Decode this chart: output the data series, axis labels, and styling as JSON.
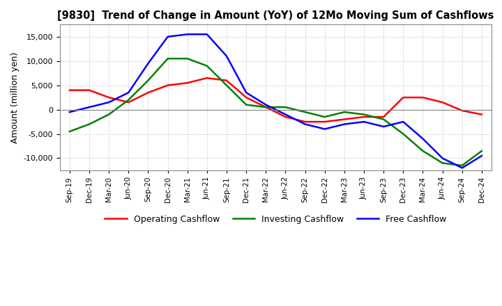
{
  "title": "[9830]  Trend of Change in Amount (YoY) of 12Mo Moving Sum of Cashflows",
  "ylabel": "Amount (million yen)",
  "background_color": "#ffffff",
  "grid_color": "#bbbbbb",
  "x_labels": [
    "Sep-19",
    "Dec-19",
    "Mar-20",
    "Jun-20",
    "Sep-20",
    "Dec-20",
    "Mar-21",
    "Jun-21",
    "Sep-21",
    "Dec-21",
    "Mar-22",
    "Jun-22",
    "Sep-22",
    "Dec-22",
    "Mar-23",
    "Jun-23",
    "Sep-23",
    "Dec-23",
    "Mar-24",
    "Jun-24",
    "Sep-24",
    "Dec-24"
  ],
  "operating_cashflow": [
    4000,
    4000,
    2500,
    1500,
    3500,
    5000,
    5500,
    6500,
    6000,
    2500,
    500,
    -1500,
    -2500,
    -2500,
    -2000,
    -1500,
    -1500,
    2500,
    2500,
    1500,
    -200,
    -1000
  ],
  "investing_cashflow": [
    -4500,
    -3000,
    -1000,
    2000,
    6000,
    10500,
    10500,
    9000,
    5000,
    1000,
    500,
    500,
    -500,
    -1500,
    -500,
    -1000,
    -2000,
    -5000,
    -8500,
    -11000,
    -11500,
    -8500
  ],
  "free_cashflow": [
    -500,
    500,
    1500,
    3500,
    9500,
    15000,
    15500,
    15500,
    11000,
    3500,
    1000,
    -1000,
    -3000,
    -4000,
    -3000,
    -2500,
    -3500,
    -2500,
    -6000,
    -10000,
    -12000,
    -9500
  ],
  "operating_color": "#ff0000",
  "investing_color": "#008000",
  "free_color": "#0000ff",
  "ylim": [
    -12500,
    17500
  ],
  "yticks": [
    -10000,
    -5000,
    0,
    5000,
    10000,
    15000
  ]
}
